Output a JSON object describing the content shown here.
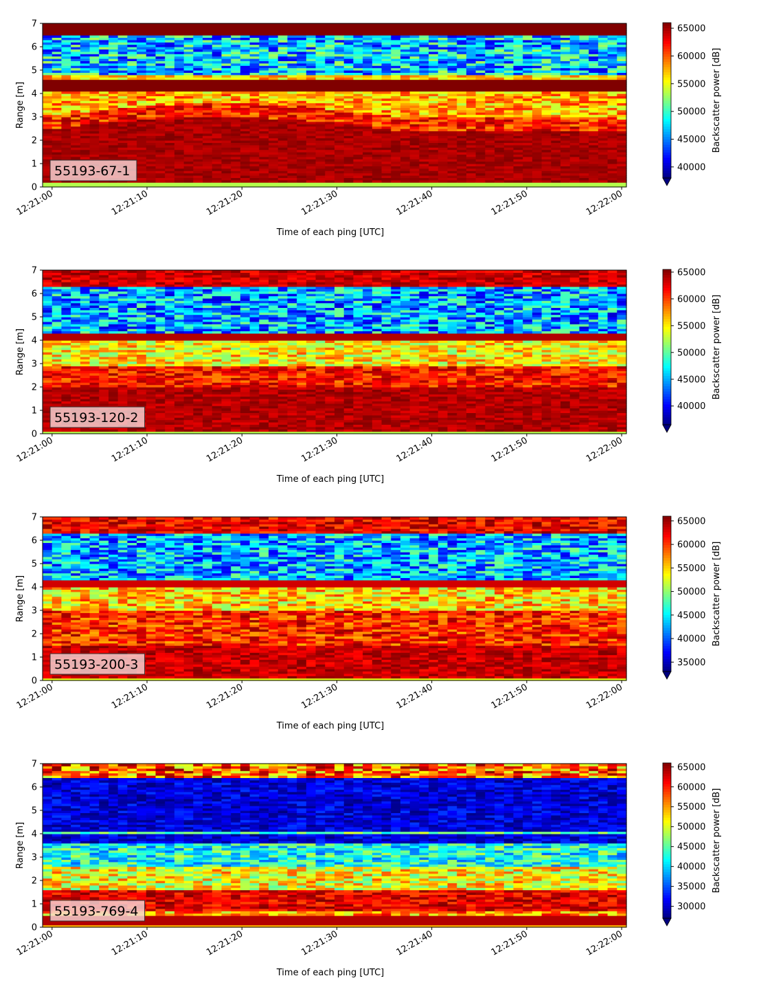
{
  "colormap": "jet",
  "time_axis": {
    "label": "Time of each ping [UTC]",
    "ticks": [
      "12:21:00",
      "12:21:10",
      "12:21:20",
      "12:21:30",
      "12:21:40",
      "12:21:50",
      "12:22:00"
    ]
  },
  "range_axis": {
    "label": "Range [m]",
    "ticks": [
      "0",
      "1",
      "2",
      "3",
      "4",
      "5",
      "6",
      "7"
    ]
  },
  "colorbar_label": "Backscatter power [dB]",
  "chart_data": [
    {
      "type": "heatmap",
      "tag": "55193-67-1",
      "xlabel": "Time of each ping [UTC]",
      "ylabel": "Range [m]",
      "xlim": [
        "12:20:59",
        "12:22:00"
      ],
      "ylim": [
        0,
        7
      ],
      "colorbar": {
        "label": "Backscatter power [dB]",
        "ticks": [
          40000,
          45000,
          50000,
          55000,
          60000,
          65000
        ],
        "range": [
          38000,
          66000
        ]
      }
    },
    {
      "type": "heatmap",
      "tag": "55193-120-2",
      "xlabel": "Time of each ping [UTC]",
      "ylabel": "Range [m]",
      "xlim": [
        "12:20:59",
        "12:22:00"
      ],
      "ylim": [
        0,
        7
      ],
      "colorbar": {
        "label": "Backscatter power [dB]",
        "ticks": [
          40000,
          45000,
          50000,
          55000,
          60000,
          65000
        ],
        "range": [
          36500,
          65500
        ]
      }
    },
    {
      "type": "heatmap",
      "tag": "55193-200-3",
      "xlabel": "Time of each ping [UTC]",
      "ylabel": "Range [m]",
      "xlim": [
        "12:20:59",
        "12:22:00"
      ],
      "ylim": [
        0,
        7
      ],
      "colorbar": {
        "label": "Backscatter power [dB]",
        "ticks": [
          35000,
          40000,
          45000,
          50000,
          55000,
          60000,
          65000
        ],
        "range": [
          33000,
          66000
        ]
      }
    },
    {
      "type": "heatmap",
      "tag": "55193-769-4",
      "xlabel": "Time of each ping [UTC]",
      "ylabel": "Range [m]",
      "xlim": [
        "12:20:59",
        "12:22:00"
      ],
      "ylim": [
        0,
        7
      ],
      "colorbar": {
        "label": "Backscatter power [dB]",
        "ticks": [
          30000,
          35000,
          40000,
          45000,
          50000,
          55000,
          60000,
          65000
        ],
        "range": [
          27000,
          66000
        ]
      }
    }
  ]
}
